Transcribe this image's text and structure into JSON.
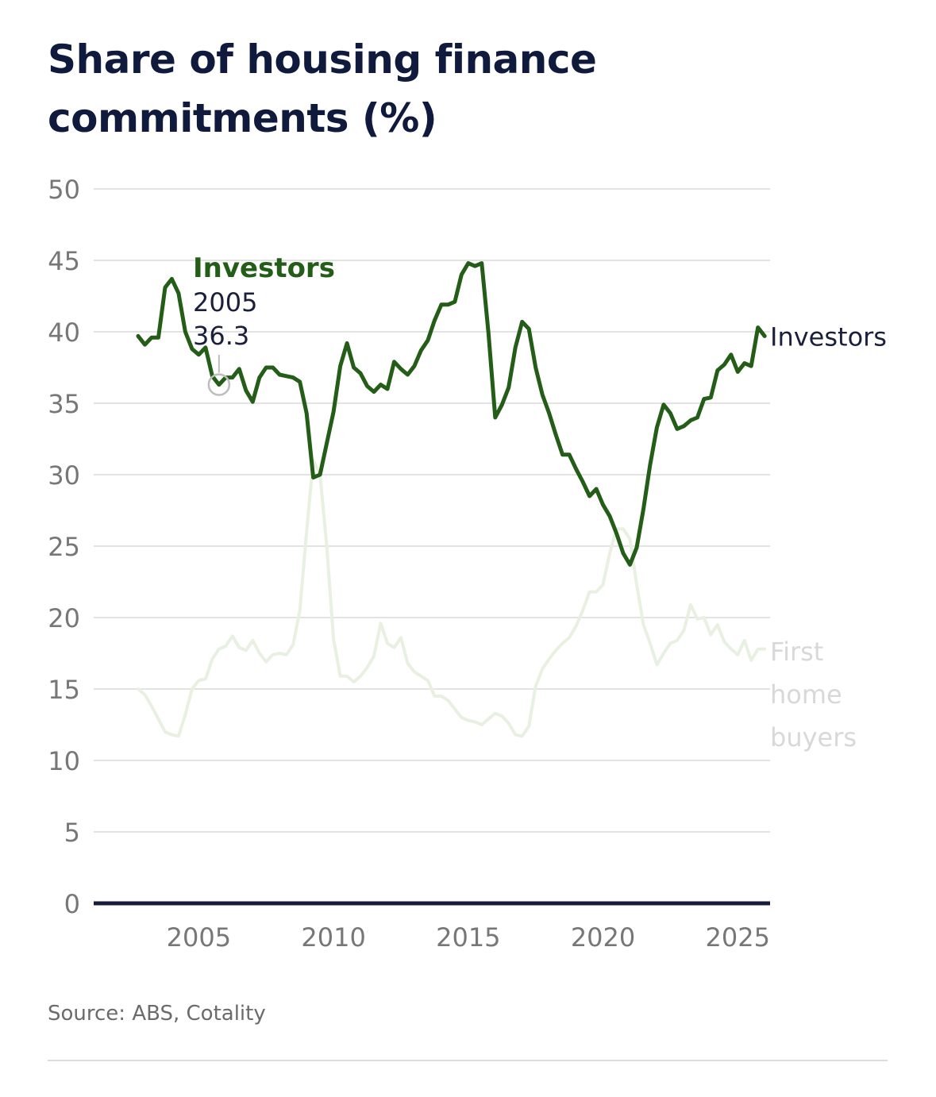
{
  "title": "Share of housing finance commitments (%)",
  "source": "Source: ABS, Cotality",
  "colors": {
    "investors": "#245d17",
    "first_home_buyers": "#e8f1e1",
    "axis": "#151c3d",
    "grid": "#e3e3e3",
    "tick": "#777777",
    "label_dark": "#1a1f3b",
    "fhb_label": "#d8d8d8"
  },
  "chart_data": {
    "type": "line",
    "title": "Share of housing finance commitments (%)",
    "xlabel": "",
    "ylabel": "",
    "xlim": [
      2001.1,
      2026.2
    ],
    "ylim": [
      0,
      50
    ],
    "yticks": [
      "0",
      "5",
      "10",
      "15",
      "20",
      "25",
      "30",
      "35",
      "40",
      "45",
      "50"
    ],
    "xticks": [
      "2005",
      "2010",
      "2015",
      "2020",
      "2025"
    ],
    "grid": true,
    "series": [
      {
        "name": "First home buyers",
        "label_lines": [
          "First",
          "home",
          "buyers"
        ],
        "x": [
          2002.75,
          2003.0,
          2003.25,
          2003.5,
          2003.75,
          2004.0,
          2004.25,
          2004.5,
          2004.75,
          2005.0,
          2005.25,
          2005.5,
          2005.75,
          2006.0,
          2006.25,
          2006.5,
          2006.75,
          2007.0,
          2007.25,
          2007.5,
          2007.75,
          2008.0,
          2008.25,
          2008.5,
          2008.75,
          2009.0,
          2009.25,
          2009.5,
          2009.75,
          2010.0,
          2010.25,
          2010.5,
          2010.75,
          2011.0,
          2011.25,
          2011.5,
          2011.75,
          2012.0,
          2012.25,
          2012.5,
          2012.75,
          2013.0,
          2013.25,
          2013.5,
          2013.75,
          2014.0,
          2014.25,
          2014.5,
          2014.75,
          2015.0,
          2015.25,
          2015.5,
          2015.75,
          2016.0,
          2016.25,
          2016.5,
          2016.75,
          2017.0,
          2017.25,
          2017.5,
          2017.75,
          2018.0,
          2018.25,
          2018.5,
          2018.75,
          2019.0,
          2019.25,
          2019.5,
          2019.75,
          2020.0,
          2020.25,
          2020.5,
          2020.75,
          2021.0,
          2021.25,
          2021.5,
          2021.75,
          2022.0,
          2022.25,
          2022.5,
          2022.75,
          2023.0,
          2023.25,
          2023.5,
          2023.75,
          2024.0,
          2024.25,
          2024.5,
          2024.75,
          2025.0,
          2025.25,
          2025.5,
          2025.75,
          2026.0
        ],
        "values": [
          15.0,
          14.6,
          13.8,
          12.9,
          12.0,
          11.8,
          11.7,
          13.2,
          15.0,
          15.6,
          15.7,
          17.1,
          17.8,
          18.0,
          18.7,
          17.9,
          17.7,
          18.4,
          17.5,
          16.9,
          17.4,
          17.5,
          17.4,
          18.1,
          20.5,
          26.0,
          31.0,
          30.0,
          25.0,
          18.5,
          15.9,
          15.9,
          15.5,
          15.9,
          16.5,
          17.3,
          19.6,
          18.2,
          17.9,
          18.6,
          16.8,
          16.2,
          15.9,
          15.6,
          14.5,
          14.5,
          14.2,
          13.6,
          13.0,
          12.8,
          12.7,
          12.5,
          12.9,
          13.3,
          13.1,
          12.6,
          11.8,
          11.7,
          12.4,
          15.2,
          16.4,
          17.1,
          17.7,
          18.2,
          18.6,
          19.4,
          20.5,
          21.8,
          21.8,
          22.3,
          24.5,
          26.2,
          26.2,
          25.5,
          22.3,
          19.5,
          18.2,
          16.7,
          17.5,
          18.2,
          18.4,
          19.1,
          20.9,
          19.9,
          20.0,
          18.8,
          19.5,
          18.3,
          17.8,
          17.4,
          18.4,
          17.0,
          17.8,
          17.8
        ]
      },
      {
        "name": "Investors",
        "label_lines": [
          "Investors"
        ],
        "x": [
          2002.75,
          2003.0,
          2003.25,
          2003.5,
          2003.75,
          2004.0,
          2004.25,
          2004.5,
          2004.75,
          2005.0,
          2005.25,
          2005.5,
          2005.75,
          2006.0,
          2006.25,
          2006.5,
          2006.75,
          2007.0,
          2007.25,
          2007.5,
          2007.75,
          2008.0,
          2008.25,
          2008.5,
          2008.75,
          2009.0,
          2009.25,
          2009.5,
          2009.75,
          2010.0,
          2010.25,
          2010.5,
          2010.75,
          2011.0,
          2011.25,
          2011.5,
          2011.75,
          2012.0,
          2012.25,
          2012.5,
          2012.75,
          2013.0,
          2013.25,
          2013.5,
          2013.75,
          2014.0,
          2014.25,
          2014.5,
          2014.75,
          2015.0,
          2015.25,
          2015.5,
          2015.75,
          2016.0,
          2016.25,
          2016.5,
          2016.75,
          2017.0,
          2017.25,
          2017.5,
          2017.75,
          2018.0,
          2018.25,
          2018.5,
          2018.75,
          2019.0,
          2019.25,
          2019.5,
          2019.75,
          2020.0,
          2020.25,
          2020.5,
          2020.75,
          2021.0,
          2021.25,
          2021.5,
          2021.75,
          2022.0,
          2022.25,
          2022.5,
          2022.75,
          2023.0,
          2023.25,
          2023.5,
          2023.75,
          2024.0,
          2024.25,
          2024.5,
          2024.75,
          2025.0,
          2025.25,
          2025.5,
          2025.75,
          2026.0
        ],
        "values": [
          39.7,
          39.1,
          39.6,
          39.6,
          43.1,
          43.7,
          42.7,
          40.0,
          38.8,
          38.4,
          38.9,
          36.9,
          36.3,
          36.8,
          36.8,
          37.4,
          35.9,
          35.1,
          36.8,
          37.5,
          37.5,
          37.0,
          36.9,
          36.8,
          36.5,
          34.3,
          29.8,
          30.0,
          32.2,
          34.4,
          37.6,
          39.2,
          37.5,
          37.1,
          36.2,
          35.8,
          36.3,
          36.0,
          37.9,
          37.4,
          37.0,
          37.6,
          38.7,
          39.4,
          40.8,
          41.9,
          41.9,
          42.1,
          44.0,
          44.8,
          44.6,
          44.8,
          39.9,
          34.0,
          34.9,
          36.1,
          38.9,
          40.7,
          40.2,
          37.5,
          35.6,
          34.3,
          32.8,
          31.4,
          31.4,
          30.4,
          29.5,
          28.5,
          29.0,
          27.9,
          27.1,
          25.9,
          24.5,
          23.7,
          24.9,
          27.6,
          30.7,
          33.3,
          34.9,
          34.3,
          33.2,
          33.4,
          33.8,
          34.0,
          35.3,
          35.4,
          37.3,
          37.7,
          38.4,
          37.2,
          37.8,
          37.6,
          40.3,
          39.7
        ]
      }
    ],
    "annotation": {
      "series": "Investors",
      "label": "Investors",
      "x_label": "2005",
      "y_label": "36.3",
      "x": 2005.75,
      "y": 36.3
    }
  }
}
